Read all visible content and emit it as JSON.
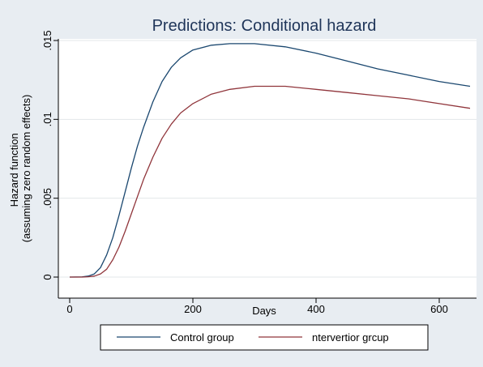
{
  "chart_data": {
    "type": "line",
    "title": "Predictions: Conditional hazard",
    "xlabel": "Days",
    "ylabel_lines": [
      "Hazard function",
      "(assuming zero random effects)"
    ],
    "xlim": [
      0,
      650
    ],
    "ylim": [
      0,
      0.015
    ],
    "xticks": [
      {
        "value": 0,
        "label": "0"
      },
      {
        "value": 200,
        "label": "200"
      },
      {
        "value": 400,
        "label": "400"
      },
      {
        "value": 600,
        "label": "600"
      }
    ],
    "yticks": [
      {
        "value": 0,
        "label": "0"
      },
      {
        "value": 0.005,
        "label": ".005"
      },
      {
        "value": 0.01,
        "label": ".01"
      },
      {
        "value": 0.015,
        "label": ".015"
      }
    ],
    "grid": true,
    "legend_position": "bottom",
    "series": [
      {
        "name": "Control group",
        "color": "#1a476f",
        "points": [
          [
            0,
            0
          ],
          [
            20,
            1e-05
          ],
          [
            30,
            6e-05
          ],
          [
            40,
            0.0002
          ],
          [
            50,
            0.0006
          ],
          [
            60,
            0.0014
          ],
          [
            70,
            0.0025
          ],
          [
            80,
            0.0039
          ],
          [
            90,
            0.0054
          ],
          [
            100,
            0.0069
          ],
          [
            110,
            0.0083
          ],
          [
            120,
            0.0095
          ],
          [
            135,
            0.0111
          ],
          [
            150,
            0.0124
          ],
          [
            165,
            0.0133
          ],
          [
            180,
            0.0139
          ],
          [
            200,
            0.0144
          ],
          [
            230,
            0.0147
          ],
          [
            260,
            0.0148
          ],
          [
            300,
            0.0148
          ],
          [
            350,
            0.0146
          ],
          [
            400,
            0.0142
          ],
          [
            450,
            0.0137
          ],
          [
            500,
            0.0132
          ],
          [
            550,
            0.0128
          ],
          [
            600,
            0.0124
          ],
          [
            650,
            0.0121
          ]
        ]
      },
      {
        "name": "ntervertior grcup",
        "color": "#90353b",
        "points": [
          [
            0,
            0
          ],
          [
            20,
            0
          ],
          [
            30,
            2e-05
          ],
          [
            40,
            6e-05
          ],
          [
            50,
            0.0002
          ],
          [
            60,
            0.0005
          ],
          [
            70,
            0.0011
          ],
          [
            80,
            0.0019
          ],
          [
            90,
            0.0029
          ],
          [
            100,
            0.004
          ],
          [
            110,
            0.0051
          ],
          [
            120,
            0.0062
          ],
          [
            135,
            0.0076
          ],
          [
            150,
            0.0088
          ],
          [
            165,
            0.0097
          ],
          [
            180,
            0.0104
          ],
          [
            200,
            0.011
          ],
          [
            230,
            0.0116
          ],
          [
            260,
            0.0119
          ],
          [
            300,
            0.0121
          ],
          [
            350,
            0.0121
          ],
          [
            400,
            0.0119
          ],
          [
            450,
            0.0117
          ],
          [
            500,
            0.0115
          ],
          [
            550,
            0.0113
          ],
          [
            600,
            0.011
          ],
          [
            650,
            0.0107
          ]
        ]
      }
    ]
  }
}
